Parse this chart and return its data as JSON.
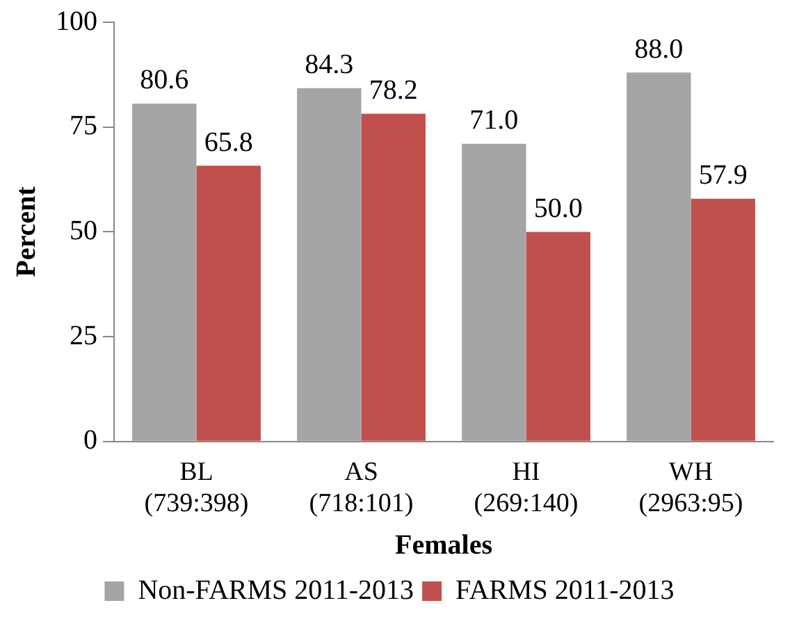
{
  "chart_data": {
    "type": "bar",
    "xlabel": "Females",
    "ylabel": "Percent",
    "categories": [
      "BL\n(739:398)",
      "AS\n(718:101)",
      "HI\n(269:140)",
      "WH\n(2963:95)"
    ],
    "series": [
      {
        "name": "Non-FARMS 2011-2013",
        "color": "#a5a5a5",
        "values": [
          80.6,
          84.3,
          71.0,
          88.0
        ],
        "value_labels": [
          "80.6",
          "84.3",
          "71.0",
          "88.0"
        ]
      },
      {
        "name": "FARMS 2011-2013",
        "color": "#c0504d",
        "values": [
          65.8,
          78.2,
          50.0,
          57.9
        ],
        "value_labels": [
          "65.8",
          "78.2",
          "50.0",
          "57.9"
        ]
      }
    ],
    "ylim": [
      0,
      100
    ],
    "yticks": [
      0,
      25,
      50,
      75,
      100
    ],
    "grid": false,
    "legend": "bottom"
  }
}
